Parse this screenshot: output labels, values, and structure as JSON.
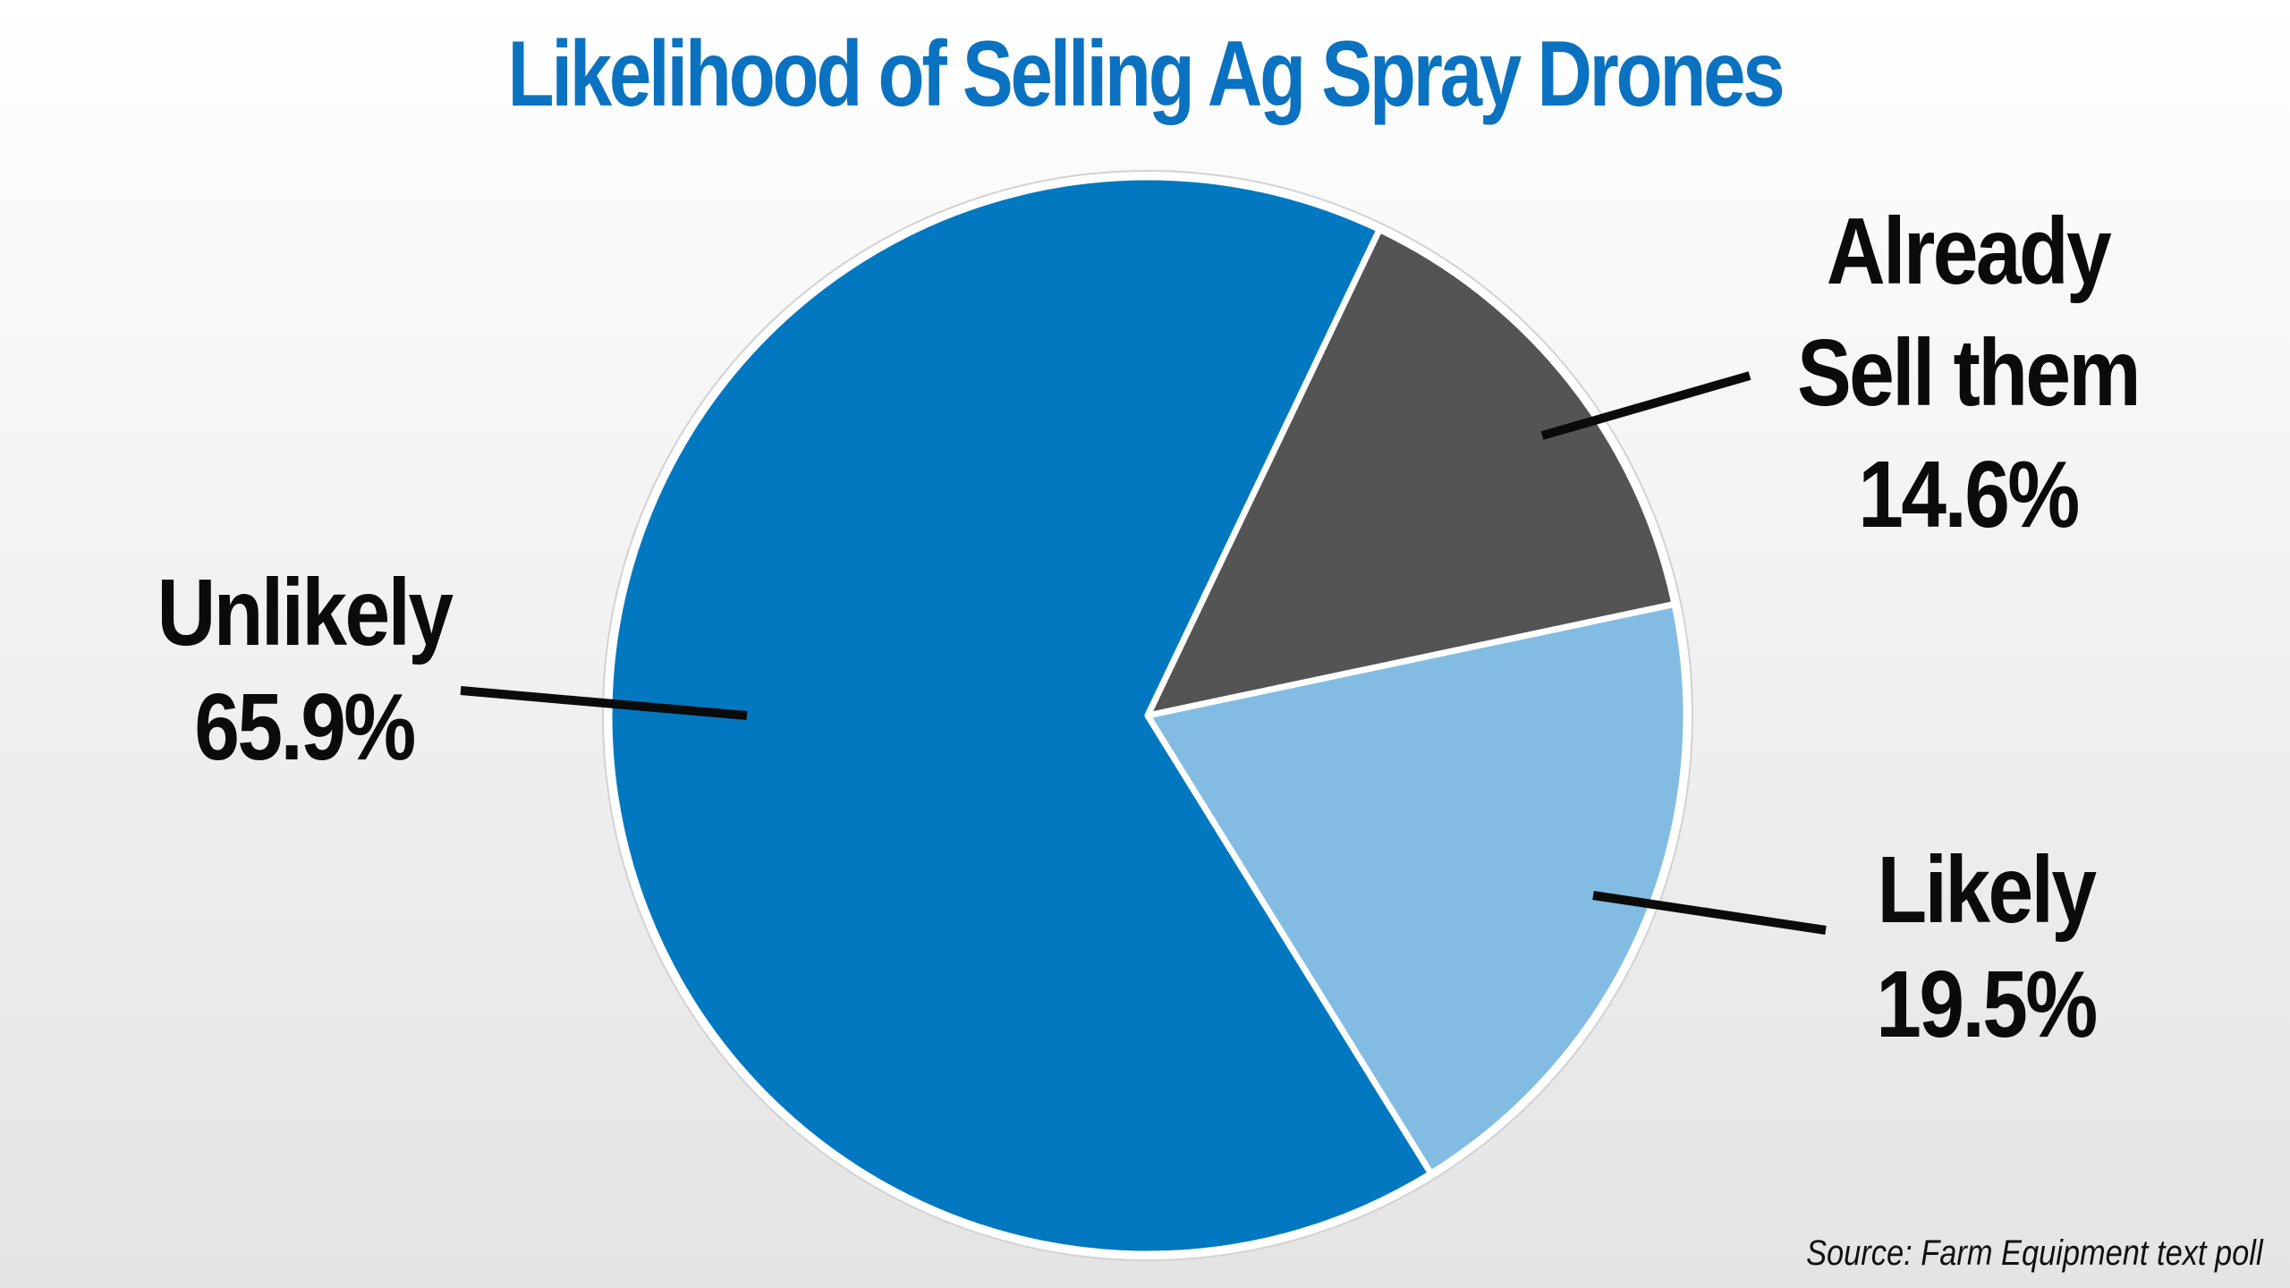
{
  "chart_data": {
    "type": "pie",
    "title": "Likelihood of Selling Ag Spray Drones",
    "slices": [
      {
        "label_lines": [
          "Unlikely"
        ],
        "value": 65.9,
        "value_label": "65.9%",
        "color": "#0278c1"
      },
      {
        "label_lines": [
          "Already",
          "Sell them"
        ],
        "value": 14.6,
        "value_label": "14.6%",
        "color": "#545454"
      },
      {
        "label_lines": [
          "Likely"
        ],
        "value": 19.5,
        "value_label": "19.5%",
        "color": "#83bce2"
      }
    ],
    "source": "Source: Farm Equipment text poll"
  },
  "colors": {
    "title": "#0a72c0",
    "slice_border": "#ffffff",
    "leader_line": "#0b0b0b",
    "label_text": "#0b0b0b"
  }
}
